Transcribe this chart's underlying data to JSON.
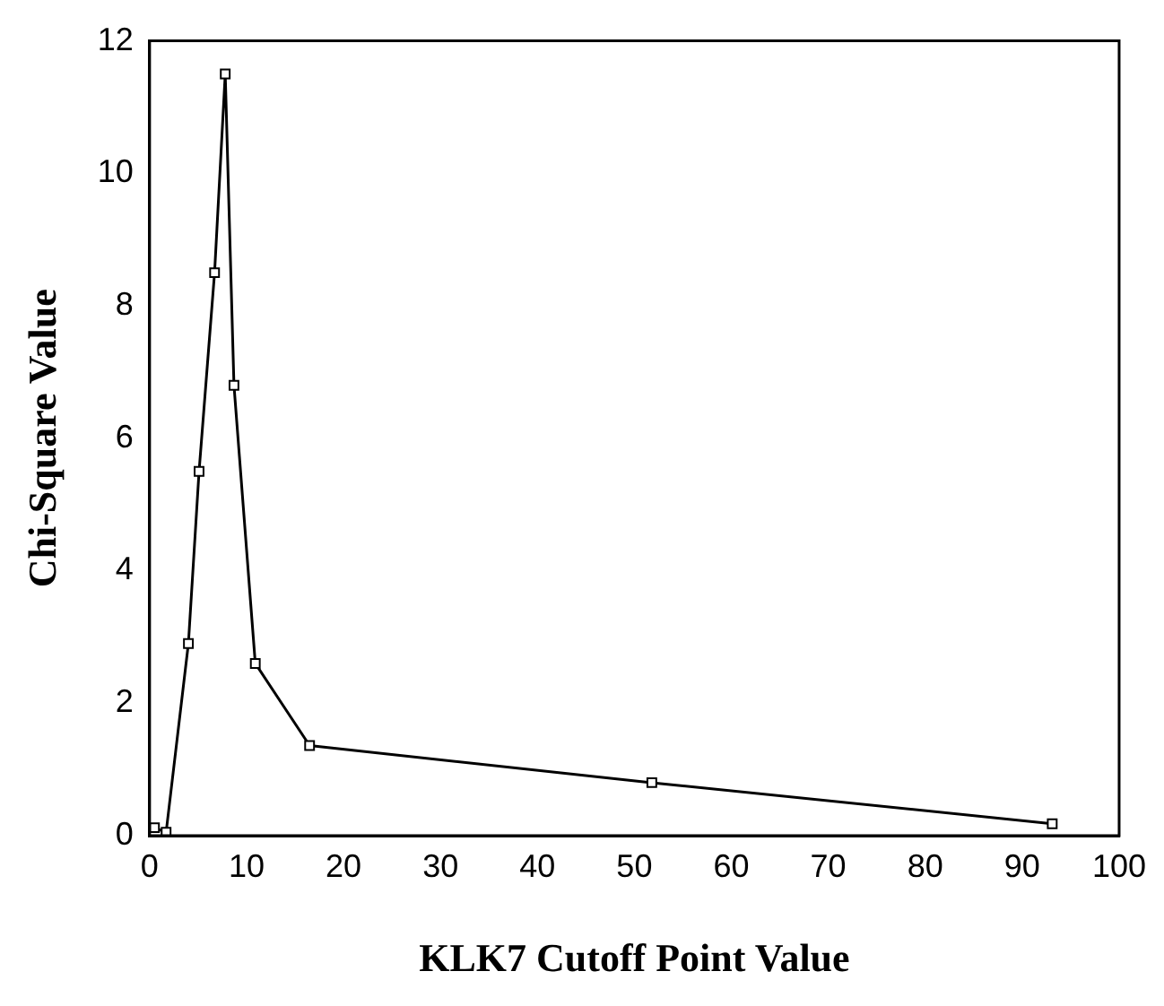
{
  "chart_data": {
    "type": "line",
    "xlabel": "KLK7 Cutoff Point Value",
    "ylabel": "Chi-Square Value",
    "x": [
      0.5,
      1.7,
      4.0,
      5.1,
      6.7,
      7.8,
      8.7,
      10.9,
      16.5,
      51.8,
      93.1
    ],
    "series": [
      {
        "color": "#000000",
        "values": [
          0.12,
          0.05,
          2.9,
          5.5,
          8.5,
          11.5,
          6.8,
          2.6,
          1.36,
          0.8,
          0.18
        ]
      }
    ],
    "xlim": [
      0,
      100
    ],
    "xticks": [
      0,
      10,
      20,
      30,
      40,
      50,
      60,
      70,
      80,
      90,
      100
    ],
    "ylim": [
      0,
      12
    ],
    "yticks": [
      0,
      2,
      4,
      6,
      8,
      10,
      12
    ],
    "grid": false,
    "legend": false,
    "marker": "square",
    "line_style": "solid"
  }
}
